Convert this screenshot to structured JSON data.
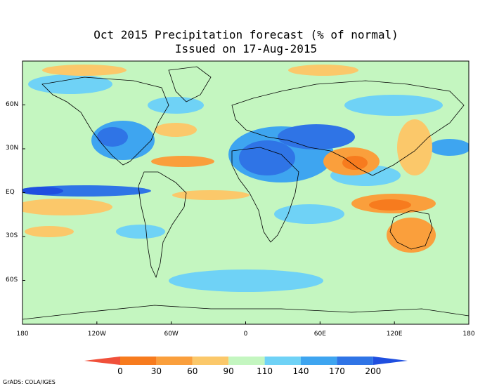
{
  "title_line1": "Oct 2015 Precipitation forecast (% of normal)",
  "title_line2": "Issued on 17-Aug-2015",
  "lat_labels": [
    "60N",
    "30N",
    "EQ",
    "30S",
    "60S"
  ],
  "lat_values": [
    60,
    30,
    0,
    -30,
    -60
  ],
  "lon_labels": [
    "180",
    "120W",
    "60W",
    "0",
    "60E",
    "120E",
    "180"
  ],
  "lon_values": [
    -180,
    -120,
    -60,
    0,
    60,
    120,
    180
  ],
  "colorbar": {
    "ticks": [
      "0",
      "30",
      "60",
      "90",
      "110",
      "140",
      "170",
      "200"
    ],
    "colors": [
      "#f0503a",
      "#f77b1e",
      "#fa9f3c",
      "#fbc86a",
      "#c4f6c0",
      "#6fd2f6",
      "#3ea5f0",
      "#2f74e6",
      "#1f4fe0"
    ]
  },
  "credit": "GrADS: COLA/IGES",
  "map_colors": {
    "normal": "#c4f6c0",
    "wet_light": "#6fd2f6",
    "wet_mid": "#3ea5f0",
    "wet_strong": "#2f74e6",
    "wet_extreme": "#1f4fe0",
    "dry_light": "#fbc86a",
    "dry_mid": "#fa9f3c",
    "dry_strong": "#f77b1e"
  }
}
